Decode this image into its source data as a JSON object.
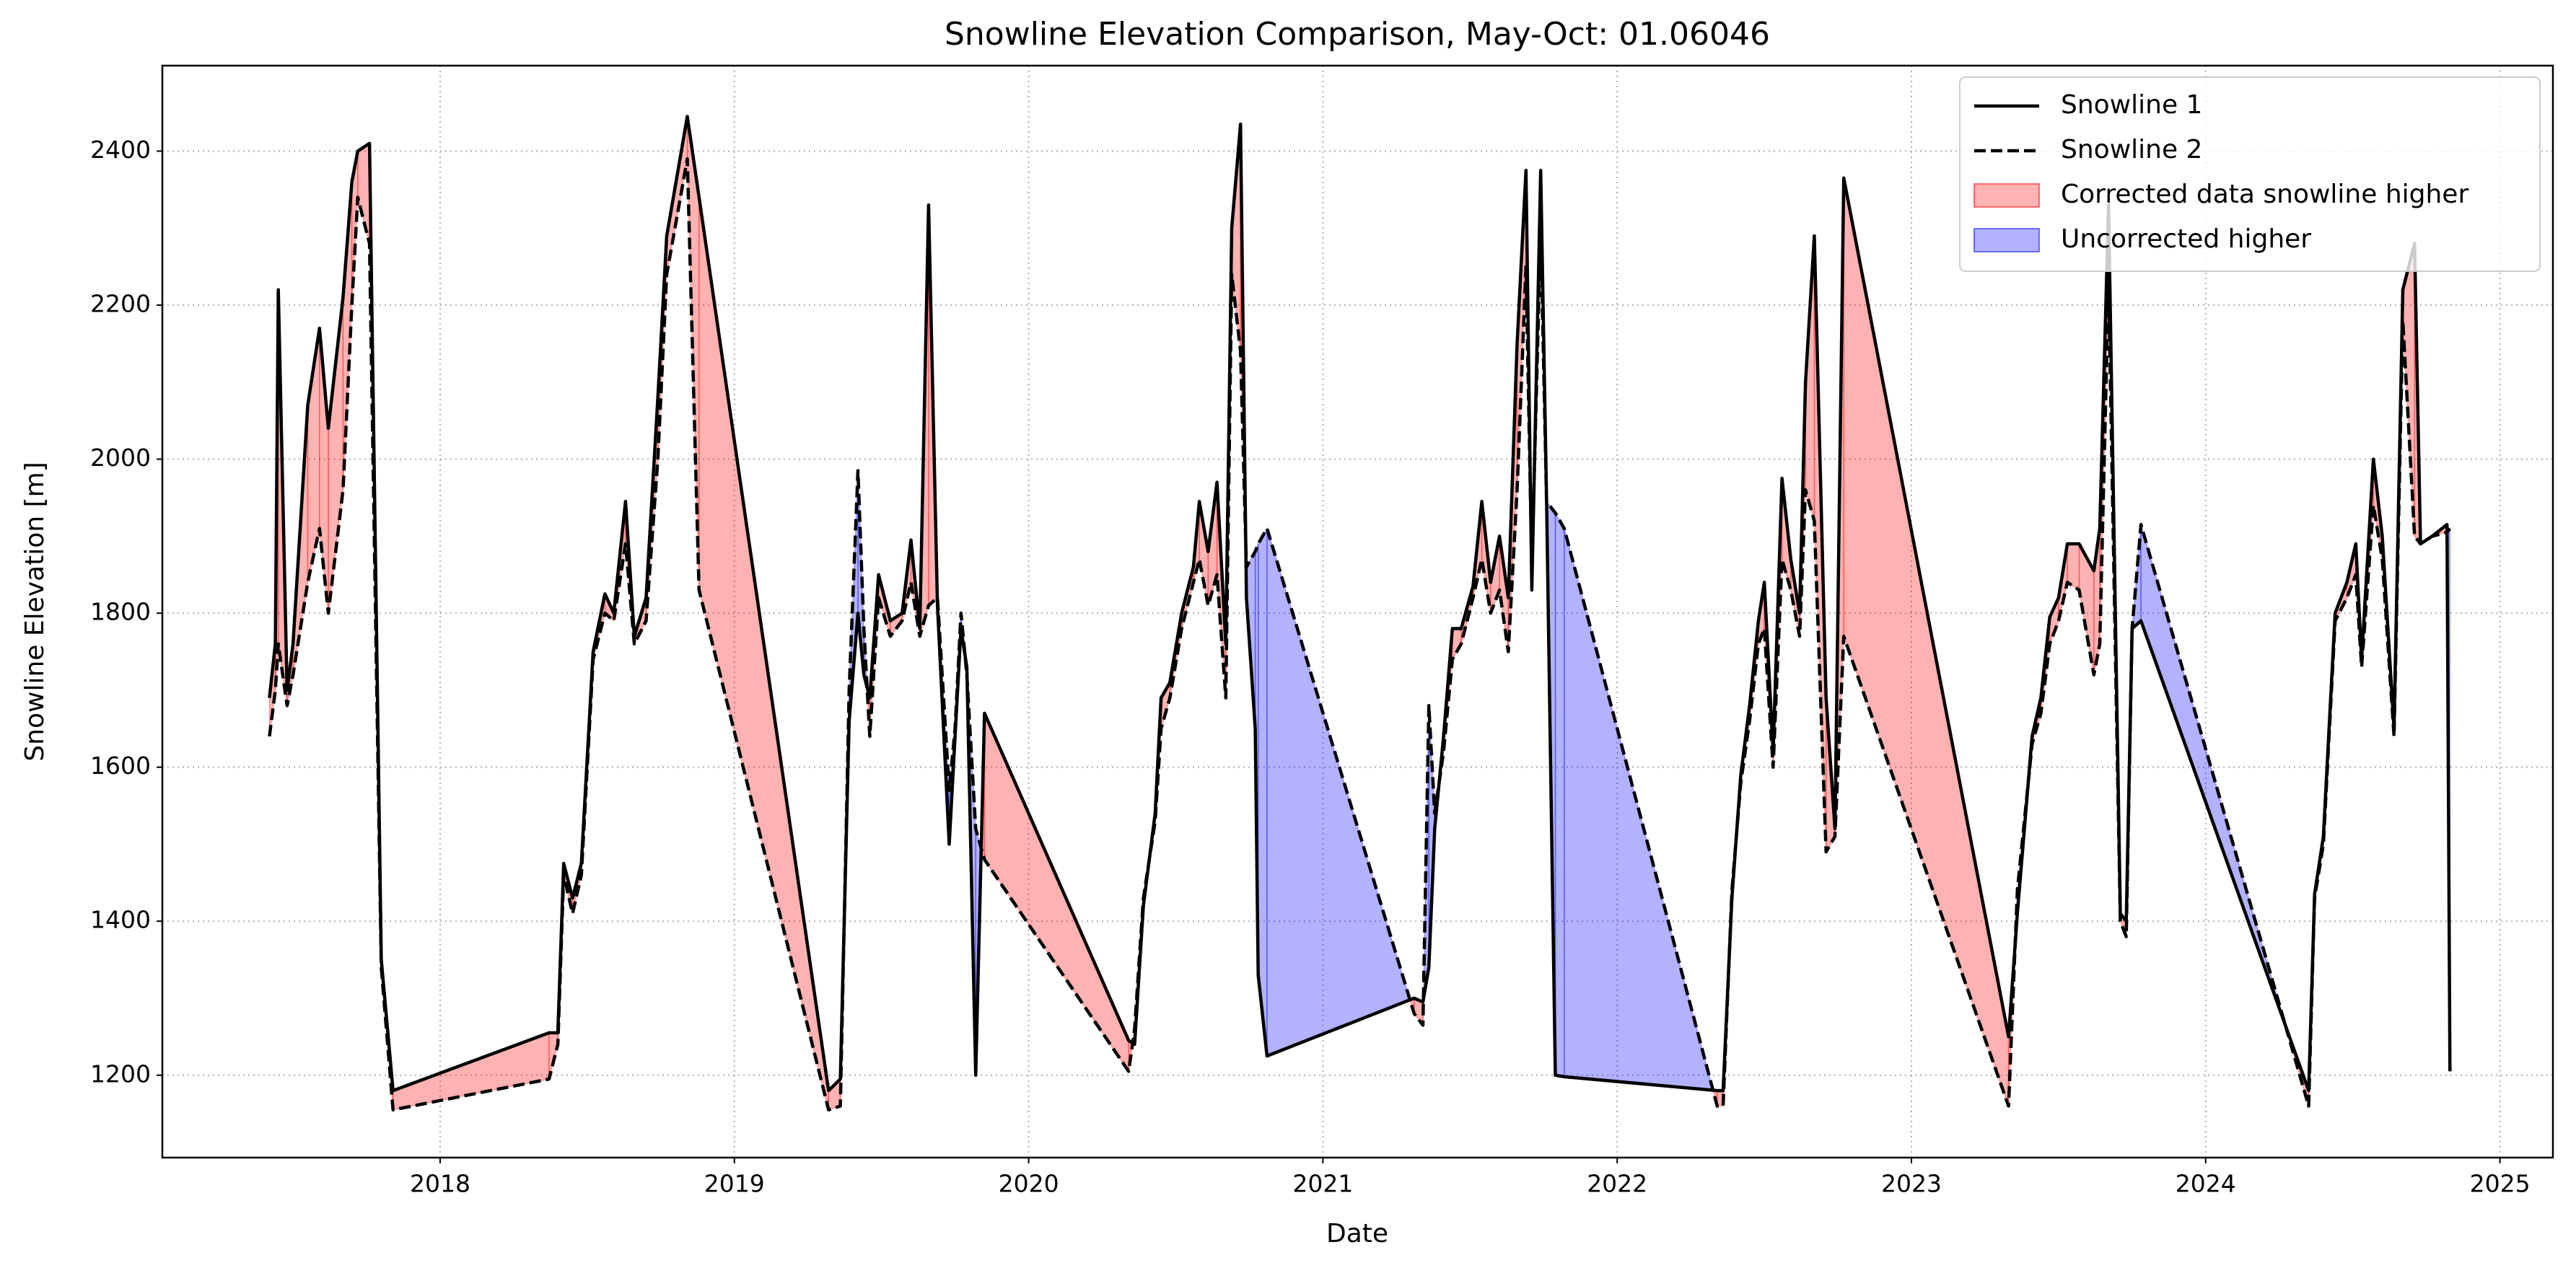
{
  "chart_data": {
    "type": "line",
    "title": "Snowline Elevation Comparison, May-Oct: 01.06046",
    "xlabel": "Date",
    "ylabel": "Snowline Elevation [m]",
    "x": [
      2017.42,
      2017.44,
      2017.45,
      2017.48,
      2017.5,
      2017.55,
      2017.59,
      2017.62,
      2017.67,
      2017.7,
      2017.72,
      2017.76,
      2017.8,
      2017.84,
      2018.37,
      2018.4,
      2018.42,
      2018.45,
      2018.48,
      2018.52,
      2018.56,
      2018.59,
      2018.63,
      2018.66,
      2018.7,
      2018.74,
      2018.77,
      2018.84,
      2018.88,
      2019.32,
      2019.36,
      2019.39,
      2019.42,
      2019.44,
      2019.46,
      2019.49,
      2019.53,
      2019.57,
      2019.6,
      2019.63,
      2019.66,
      2019.69,
      2019.73,
      2019.75,
      2019.77,
      2019.79,
      2019.82,
      2019.85,
      2020.34,
      2020.36,
      2020.39,
      2020.43,
      2020.45,
      2020.48,
      2020.52,
      2020.56,
      2020.58,
      2020.61,
      2020.64,
      2020.67,
      2020.69,
      2020.72,
      2020.74,
      2020.77,
      2020.78,
      2020.81,
      2021.31,
      2021.34,
      2021.36,
      2021.38,
      2021.41,
      2021.44,
      2021.47,
      2021.51,
      2021.54,
      2021.57,
      2021.6,
      2021.63,
      2021.66,
      2021.69,
      2021.71,
      2021.74,
      2021.76,
      2021.79,
      2021.82,
      2022.34,
      2022.36,
      2022.39,
      2022.42,
      2022.45,
      2022.48,
      2022.5,
      2022.53,
      2022.56,
      2022.59,
      2022.62,
      2022.64,
      2022.67,
      2022.71,
      2022.74,
      2022.77,
      2023.33,
      2023.36,
      2023.41,
      2023.44,
      2023.47,
      2023.5,
      2023.53,
      2023.57,
      2023.62,
      2023.64,
      2023.67,
      2023.71,
      2023.73,
      2023.75,
      2023.78,
      2024.35,
      2024.37,
      2024.4,
      2024.44,
      2024.48,
      2024.51,
      2024.53,
      2024.57,
      2024.6,
      2024.64,
      2024.67,
      2024.71,
      2024.73,
      2024.77,
      2024.82,
      2024.83
    ],
    "series": [
      {
        "name": "Snowline 1",
        "color": "#000000",
        "dash": "solid",
        "values": [
          1690,
          1760,
          2220,
          1700,
          1760,
          2070,
          2170,
          2040,
          2210,
          2360,
          2400,
          2410,
          1350,
          1180,
          1255,
          1255,
          1475,
          1430,
          1475,
          1750,
          1825,
          1800,
          1945,
          1770,
          1820,
          2080,
          2290,
          2445,
          2340,
          1180,
          1195,
          1660,
          1800,
          1720,
          1690,
          1850,
          1790,
          1800,
          1895,
          1780,
          2330,
          1810,
          1500,
          1640,
          1780,
          1730,
          1200,
          1670,
          1245,
          1240,
          1420,
          1540,
          1690,
          1710,
          1800,
          1860,
          1945,
          1880,
          1970,
          1760,
          2300,
          2435,
          1820,
          1650,
          1330,
          1225,
          1300,
          1295,
          1340,
          1520,
          1640,
          1780,
          1780,
          1835,
          1945,
          1840,
          1900,
          1820,
          2150,
          2375,
          1830,
          2375,
          1950,
          1200,
          1198,
          1180,
          1180,
          1430,
          1590,
          1680,
          1790,
          1840,
          1620,
          1975,
          1870,
          1800,
          2100,
          2290,
          1690,
          1520,
          2365,
          1250,
          1410,
          1640,
          1690,
          1795,
          1820,
          1890,
          1890,
          1855,
          1910,
          2330,
          1410,
          1400,
          1780,
          1790,
          1180,
          1435,
          1510,
          1800,
          1840,
          1890,
          1740,
          2000,
          1900,
          1650,
          2220,
          2280,
          1890,
          1900,
          1915,
          1205
        ]
      },
      {
        "name": "Snowline 2",
        "color": "#000000",
        "dash": "dashed",
        "values": [
          1640,
          1700,
          1760,
          1680,
          1720,
          1840,
          1910,
          1800,
          1960,
          2200,
          2340,
          2280,
          1340,
          1155,
          1195,
          1240,
          1460,
          1410,
          1460,
          1740,
          1800,
          1790,
          1890,
          1760,
          1790,
          2000,
          2240,
          2390,
          1830,
          1155,
          1160,
          1700,
          1985,
          1780,
          1640,
          1820,
          1770,
          1790,
          1840,
          1770,
          1810,
          1820,
          1570,
          1650,
          1800,
          1720,
          1520,
          1480,
          1205,
          1260,
          1430,
          1530,
          1650,
          1690,
          1780,
          1840,
          1870,
          1810,
          1850,
          1690,
          2240,
          2140,
          1860,
          1880,
          1890,
          1910,
          1280,
          1265,
          1680,
          1540,
          1620,
          1740,
          1760,
          1820,
          1870,
          1800,
          1830,
          1750,
          1960,
          2250,
          1860,
          2300,
          1945,
          1930,
          1910,
          1160,
          1160,
          1440,
          1580,
          1660,
          1760,
          1780,
          1600,
          1870,
          1830,
          1770,
          1960,
          1920,
          1490,
          1510,
          1770,
          1160,
          1440,
          1630,
          1670,
          1760,
          1790,
          1840,
          1830,
          1720,
          1760,
          2230,
          1400,
          1380,
          1780,
          1915,
          1160,
          1430,
          1500,
          1790,
          1820,
          1850,
          1730,
          1940,
          1870,
          1640,
          2180,
          1900,
          1890,
          1900,
          1905,
          1910
        ]
      }
    ],
    "fills": [
      {
        "name": "Corrected data snowline higher",
        "color": "#ff0000",
        "alpha": 0.3
      },
      {
        "name": "Uncorrected higher",
        "color": "#0000ff",
        "alpha": 0.3
      }
    ],
    "xlim": [
      2017.056,
      2025.18
    ],
    "xticks": [
      2018,
      2019,
      2020,
      2021,
      2022,
      2023,
      2024,
      2025
    ],
    "ylim": [
      1093,
      2511
    ],
    "yticks": [
      1200,
      1400,
      1600,
      1800,
      2000,
      2200,
      2400
    ],
    "grid": true,
    "legend": "upper right"
  }
}
